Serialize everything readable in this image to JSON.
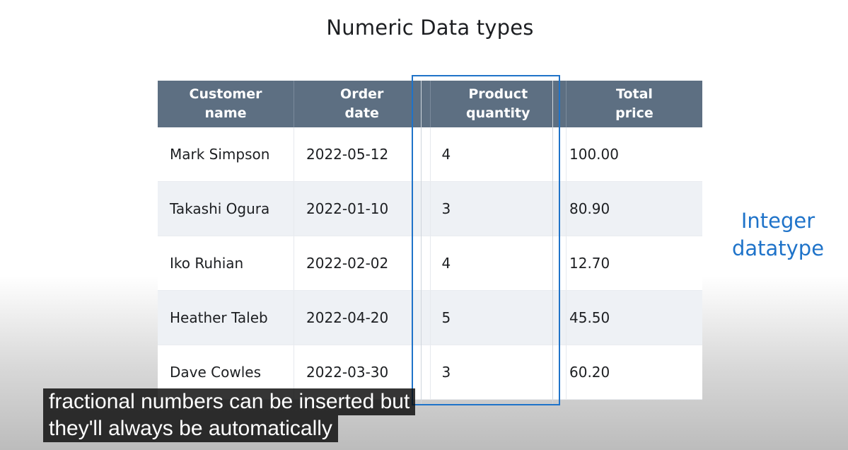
{
  "slide": {
    "title": "Numeric Data types"
  },
  "table": {
    "columns": [
      {
        "line1": "Customer",
        "line2": "name"
      },
      {
        "line1": "Order",
        "line2": "date"
      },
      {
        "line1": "Product",
        "line2": "quantity"
      },
      {
        "line1": "Total",
        "line2": "price"
      }
    ],
    "rows": [
      {
        "customer_name": "Mark Simpson",
        "order_date": "2022-05-12",
        "product_quantity": "4",
        "total_price": "100.00"
      },
      {
        "customer_name": "Takashi Ogura",
        "order_date": "2022-01-10",
        "product_quantity": "3",
        "total_price": "80.90"
      },
      {
        "customer_name": "Iko Ruhian",
        "order_date": "2022-02-02",
        "product_quantity": "4",
        "total_price": "12.70"
      },
      {
        "customer_name": "Heather Taleb",
        "order_date": "2022-04-20",
        "product_quantity": "5",
        "total_price": "45.50"
      },
      {
        "customer_name": "Dave Cowles",
        "order_date": "2022-03-30",
        "product_quantity": "3",
        "total_price": "60.20"
      }
    ]
  },
  "callout": {
    "line1": "Integer",
    "line2": "datatype"
  },
  "captions": {
    "line1": "fractional numbers can be inserted but",
    "line2": "they'll always be automatically"
  },
  "colors": {
    "header_background": "#5d6f82",
    "highlight": "#1f73c9",
    "row_alternate": "#eef1f5",
    "caption_background": "#080808"
  }
}
